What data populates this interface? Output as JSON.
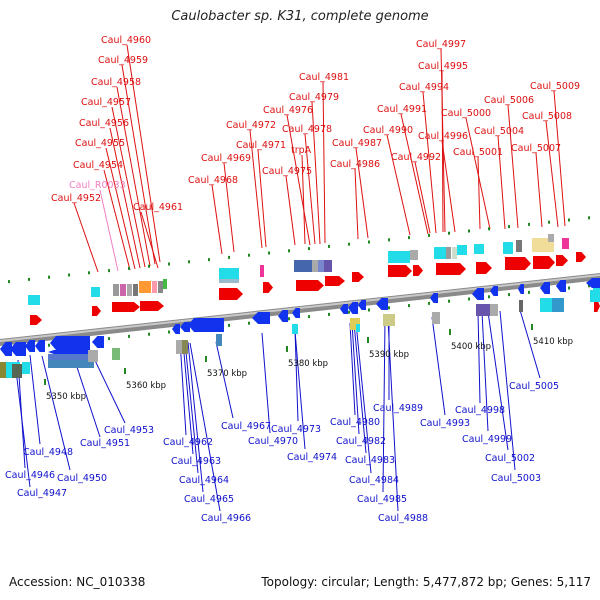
{
  "title": "Caulobacter sp. K31, complete genome",
  "footer": {
    "accession": "Accession: NC_010338",
    "info": "Topology: circular; Length: 5,477,872 bp; Genes: 5,117"
  },
  "colors": {
    "forward_label": "#dd1111",
    "reverse_label": "#1111cc",
    "pseudo_label": "#f080c0",
    "forward_arrow": "#ee0000",
    "reverse_arrow": "#1133ee",
    "axis": "#909090",
    "tick": "#228822"
  },
  "scale_labels": [
    "5350 kbp",
    "5360 kbp",
    "5370 kbp",
    "5380 kbp",
    "5390 kbp",
    "5400 kbp",
    "5410 kbp"
  ],
  "top_labels": [
    "Caul_4960",
    "Caul_4959",
    "Caul_4958",
    "Caul_4957",
    "Caul_4956",
    "Caul_4955",
    "Caul_4954",
    "Caul_R0033",
    "Caul_4952",
    "Caul_4961",
    "Caul_4972",
    "Caul_4971",
    "Caul_4969",
    "Caul_4968",
    "Caul_4981",
    "Caul_4979",
    "Caul_4976",
    "Caul_4978",
    "trpA",
    "Caul_4975",
    "Caul_4987",
    "Caul_4986",
    "Caul_4997",
    "Caul_4995",
    "Caul_4994",
    "Caul_4991",
    "Caul_4990",
    "Caul_4996",
    "Caul_4992",
    "Caul_5000",
    "Caul_5001",
    "Caul_5006",
    "Caul_5004",
    "Caul_5009",
    "Caul_5008",
    "Caul_5007"
  ],
  "bottom_labels": [
    "Caul_4948",
    "Caul_4946",
    "Caul_4947",
    "Caul_4950",
    "Caul_4951",
    "Caul_4953",
    "Caul_4962",
    "Caul_4963",
    "Caul_4964",
    "Caul_4965",
    "Caul_4966",
    "Caul_4967",
    "Caul_4970",
    "Caul_4973",
    "Caul_4974",
    "Caul_4980",
    "Caul_4982",
    "Caul_4983",
    "Caul_4984",
    "Caul_4985",
    "Caul_4988",
    "Caul_4989",
    "Caul_4993",
    "Caul_4998",
    "Caul_4999",
    "Caul_5002",
    "Caul_5003",
    "Caul_5005"
  ]
}
